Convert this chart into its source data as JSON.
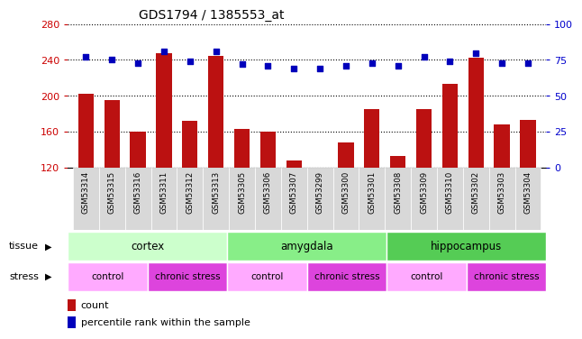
{
  "title": "GDS1794 / 1385553_at",
  "samples": [
    "GSM53314",
    "GSM53315",
    "GSM53316",
    "GSM53311",
    "GSM53312",
    "GSM53313",
    "GSM53305",
    "GSM53306",
    "GSM53307",
    "GSM53299",
    "GSM53300",
    "GSM53301",
    "GSM53308",
    "GSM53309",
    "GSM53310",
    "GSM53302",
    "GSM53303",
    "GSM53304"
  ],
  "counts": [
    202,
    195,
    160,
    248,
    172,
    244,
    163,
    160,
    128,
    118,
    148,
    185,
    133,
    185,
    213,
    242,
    168,
    173
  ],
  "percentiles": [
    77,
    75,
    73,
    81,
    74,
    81,
    72,
    71,
    69,
    69,
    71,
    73,
    71,
    77,
    74,
    80,
    73,
    73
  ],
  "ylim_left": [
    120,
    280
  ],
  "ylim_right": [
    0,
    100
  ],
  "yticks_left": [
    120,
    160,
    200,
    240,
    280
  ],
  "yticks_right": [
    0,
    25,
    50,
    75,
    100
  ],
  "bar_color": "#bb1111",
  "dot_color": "#0000bb",
  "tissue_groups": [
    {
      "label": "cortex",
      "start": 0,
      "end": 6,
      "color": "#ccffcc"
    },
    {
      "label": "amygdala",
      "start": 6,
      "end": 12,
      "color": "#88ee88"
    },
    {
      "label": "hippocampus",
      "start": 12,
      "end": 18,
      "color": "#55cc55"
    }
  ],
  "stress_groups": [
    {
      "label": "control",
      "start": 0,
      "end": 3,
      "color": "#ffaaff"
    },
    {
      "label": "chronic stress",
      "start": 3,
      "end": 6,
      "color": "#dd44dd"
    },
    {
      "label": "control",
      "start": 6,
      "end": 9,
      "color": "#ffaaff"
    },
    {
      "label": "chronic stress",
      "start": 9,
      "end": 12,
      "color": "#dd44dd"
    },
    {
      "label": "control",
      "start": 12,
      "end": 15,
      "color": "#ffaaff"
    },
    {
      "label": "chronic stress",
      "start": 15,
      "end": 18,
      "color": "#dd44dd"
    }
  ],
  "background_color": "#ffffff",
  "tick_label_color_left": "#cc0000",
  "tick_label_color_right": "#0000cc",
  "xticklabel_bg": "#d8d8d8"
}
